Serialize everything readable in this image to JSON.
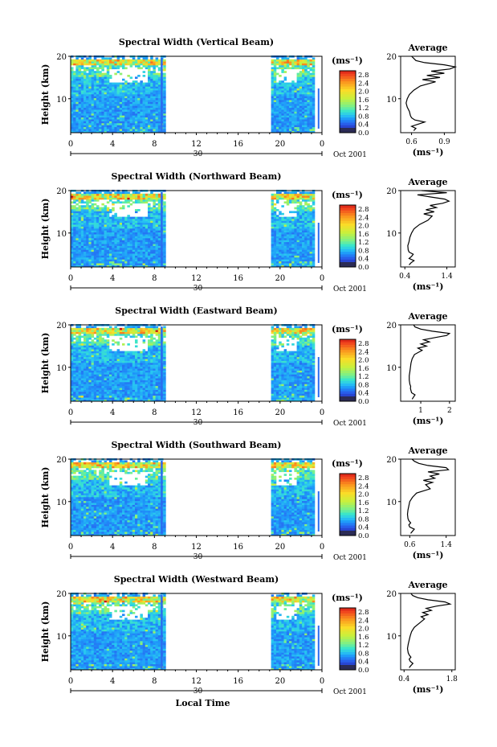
{
  "chart_data": [
    {
      "type": "heatmap",
      "title": "Spectral Width (Vertical Beam)",
      "ylabel": "Height (km)",
      "y_ticks": [
        "20",
        "10"
      ],
      "ylim": [
        2,
        20
      ],
      "x_ticks": [
        "0",
        "4",
        "8",
        "12",
        "16",
        "20",
        "0"
      ],
      "date_day": "30",
      "date_label": "Oct 2001",
      "colorbar": {
        "unit": "(ms⁻¹)",
        "ticks": [
          "2.8",
          "2.4",
          "2.0",
          "1.6",
          "1.2",
          "0.8",
          "0.4",
          "0.0"
        ],
        "range": [
          0,
          3.0
        ]
      },
      "data_gap_hours": [
        9,
        19
      ],
      "profile": {
        "title": "Average",
        "xlabel": "(ms⁻¹)",
        "x_ticks": [
          "0.6",
          "0.9"
        ],
        "xlim": [
          0.5,
          1.0
        ],
        "y_ticks": [
          "20",
          "10"
        ],
        "heights": [
          2.5,
          3,
          3.5,
          4,
          4.5,
          5,
          5.5,
          6,
          7,
          8,
          9,
          10,
          11,
          12,
          13,
          14,
          14.5,
          15,
          15.5,
          16,
          16.5,
          17,
          17.5,
          18,
          18.5,
          19,
          19.5,
          20
        ],
        "values": [
          0.62,
          0.64,
          0.6,
          0.66,
          0.72,
          0.63,
          0.6,
          0.59,
          0.58,
          0.56,
          0.55,
          0.56,
          0.58,
          0.62,
          0.68,
          0.82,
          0.7,
          0.86,
          0.74,
          0.9,
          0.78,
          0.95,
          1.0,
          0.9,
          0.72,
          0.64,
          0.62,
          0.6
        ]
      }
    },
    {
      "type": "heatmap",
      "title": "Spectral Width (Northward Beam)",
      "ylabel": "Height (km)",
      "y_ticks": [
        "20",
        "10"
      ],
      "ylim": [
        2,
        20
      ],
      "x_ticks": [
        "0",
        "4",
        "8",
        "12",
        "16",
        "20",
        "0"
      ],
      "date_day": "30",
      "date_label": "Oct 2001",
      "colorbar": {
        "unit": "(ms⁻¹)",
        "ticks": [
          "2.8",
          "2.4",
          "2.0",
          "1.6",
          "1.2",
          "0.8",
          "0.4",
          "0.0"
        ],
        "range": [
          0,
          3.0
        ]
      },
      "data_gap_hours": [
        9,
        19
      ],
      "profile": {
        "title": "Average",
        "xlabel": "(ms⁻¹)",
        "x_ticks": [
          "0.4",
          "1.4"
        ],
        "xlim": [
          0.3,
          1.6
        ],
        "y_ticks": [
          "20",
          "10"
        ],
        "heights": [
          2.5,
          3,
          3.5,
          4,
          4.5,
          5,
          5.5,
          6,
          7,
          8,
          9,
          10,
          11,
          12,
          13,
          14,
          14.5,
          15,
          15.5,
          16,
          16.5,
          17,
          17.5,
          18,
          18.5,
          19,
          19.5,
          20
        ],
        "values": [
          0.5,
          0.55,
          0.62,
          0.5,
          0.56,
          0.6,
          0.5,
          0.48,
          0.47,
          0.5,
          0.52,
          0.56,
          0.62,
          0.75,
          0.95,
          1.05,
          0.85,
          1.1,
          0.9,
          1.15,
          1.0,
          1.3,
          1.45,
          1.35,
          1.0,
          0.7,
          1.4,
          0.8
        ]
      }
    },
    {
      "type": "heatmap",
      "title": "Spectral Width (Eastward Beam)",
      "ylabel": "Height (km)",
      "y_ticks": [
        "20",
        "10"
      ],
      "ylim": [
        2,
        20
      ],
      "x_ticks": [
        "0",
        "4",
        "8",
        "12",
        "16",
        "20",
        "0"
      ],
      "date_day": "30",
      "date_label": "Oct 2001",
      "colorbar": {
        "unit": "(ms⁻¹)",
        "ticks": [
          "2.8",
          "2.4",
          "2.0",
          "1.6",
          "1.2",
          "0.8",
          "0.4",
          "0.0"
        ],
        "range": [
          0,
          3.0
        ]
      },
      "data_gap_hours": [
        9,
        19
      ],
      "profile": {
        "title": "Average",
        "xlabel": "(ms⁻¹)",
        "x_ticks": [
          "1",
          "2"
        ],
        "xlim": [
          0.3,
          2.2
        ],
        "y_ticks": [
          "20",
          "10"
        ],
        "heights": [
          2.5,
          3,
          3.5,
          4,
          4.5,
          5,
          5.5,
          6,
          7,
          8,
          9,
          10,
          11,
          12,
          13,
          14,
          14.5,
          15,
          15.5,
          16,
          16.5,
          17,
          17.5,
          18,
          18.5,
          19,
          19.5,
          20
        ],
        "values": [
          0.7,
          0.75,
          0.8,
          0.68,
          0.66,
          0.64,
          0.65,
          0.62,
          0.6,
          0.6,
          0.62,
          0.64,
          0.66,
          0.7,
          0.78,
          1.05,
          0.9,
          1.2,
          1.0,
          1.3,
          1.1,
          1.5,
          1.9,
          2.0,
          1.4,
          1.0,
          0.8,
          0.75
        ]
      }
    },
    {
      "type": "heatmap",
      "title": "Spectral Width (Southward Beam)",
      "ylabel": "Height (km)",
      "y_ticks": [
        "20",
        "10"
      ],
      "ylim": [
        2,
        20
      ],
      "x_ticks": [
        "0",
        "4",
        "8",
        "12",
        "16",
        "20",
        "0"
      ],
      "date_day": "30",
      "date_label": "Oct 2001",
      "colorbar": {
        "unit": "(ms⁻¹)",
        "ticks": [
          "2.8",
          "2.4",
          "2.0",
          "1.6",
          "1.2",
          "0.8",
          "0.4",
          "0.0"
        ],
        "range": [
          0,
          3.0
        ]
      },
      "data_gap_hours": [
        9,
        19
      ],
      "profile": {
        "title": "Average",
        "xlabel": "(ms⁻¹)",
        "x_ticks": [
          "0.6",
          "1.4"
        ],
        "xlim": [
          0.4,
          1.6
        ],
        "y_ticks": [
          "20",
          "10"
        ],
        "heights": [
          2.5,
          3,
          3.5,
          4,
          4.5,
          5,
          5.5,
          6,
          7,
          8,
          9,
          10,
          11,
          12,
          13,
          14,
          14.5,
          15,
          15.5,
          16,
          16.5,
          17,
          17.5,
          18,
          18.5,
          19,
          19.5,
          20
        ],
        "values": [
          0.62,
          0.66,
          0.7,
          0.6,
          0.58,
          0.62,
          0.58,
          0.56,
          0.55,
          0.56,
          0.58,
          0.6,
          0.66,
          0.75,
          1.05,
          0.95,
          1.1,
          0.9,
          1.15,
          1.05,
          1.25,
          1.0,
          1.45,
          1.4,
          1.0,
          0.8,
          0.7,
          0.65
        ]
      }
    },
    {
      "type": "heatmap",
      "title": "Spectral Width (Westward Beam)",
      "ylabel": "Height (km)",
      "y_ticks": [
        "20",
        "10"
      ],
      "ylim": [
        2,
        20
      ],
      "x_ticks": [
        "0",
        "4",
        "8",
        "12",
        "16",
        "20",
        "0"
      ],
      "date_day": "30",
      "date_label": "Oct 2001",
      "xlabel": "Local Time",
      "colorbar": {
        "unit": "(ms⁻¹)",
        "ticks": [
          "2.8",
          "2.4",
          "2.0",
          "1.6",
          "1.2",
          "0.8",
          "0.4",
          "0.0"
        ],
        "range": [
          0,
          3.0
        ]
      },
      "data_gap_hours": [
        9,
        19
      ],
      "profile": {
        "title": "Average",
        "xlabel": "(ms⁻¹)",
        "x_ticks": [
          "0.4",
          "1.8"
        ],
        "xlim": [
          0.3,
          1.9
        ],
        "y_ticks": [
          "20",
          "10"
        ],
        "heights": [
          2.5,
          3,
          3.5,
          4,
          4.5,
          5,
          5.5,
          6,
          7,
          8,
          9,
          10,
          11,
          12,
          13,
          14,
          14.5,
          15,
          15.5,
          16,
          16.5,
          17,
          17.5,
          18,
          18.5,
          19,
          19.5,
          20
        ],
        "values": [
          0.55,
          0.6,
          0.66,
          0.58,
          0.55,
          0.6,
          0.55,
          0.52,
          0.5,
          0.52,
          0.55,
          0.58,
          0.62,
          0.7,
          0.85,
          1.0,
          0.9,
          1.1,
          0.95,
          1.2,
          1.05,
          1.35,
          1.75,
          1.6,
          1.1,
          0.8,
          0.65,
          0.6
        ]
      }
    }
  ]
}
